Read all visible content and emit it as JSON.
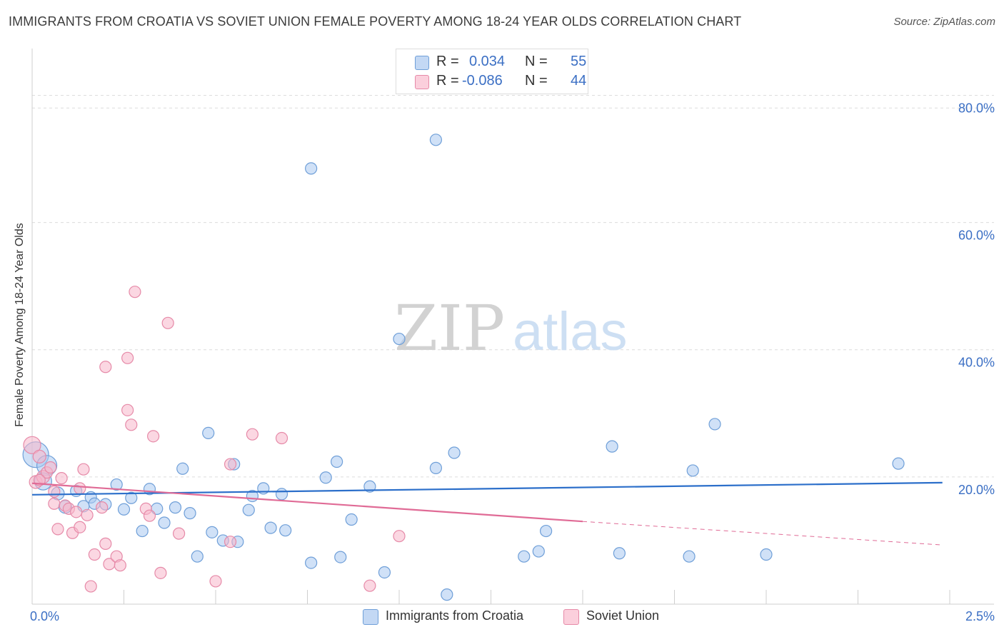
{
  "title": "IMMIGRANTS FROM CROATIA VS SOVIET UNION FEMALE POVERTY AMONG 18-24 YEAR OLDS CORRELATION CHART",
  "source": "Source: ZipAtlas.com",
  "watermark": {
    "zip": "ZIP",
    "atlas": "atlas"
  },
  "colors": {
    "blue_fill": "#aac8f0",
    "blue_stroke": "#6f9fd8",
    "blue_line": "#2c6fca",
    "pink_fill": "#f7b7cb",
    "pink_stroke": "#e68aa8",
    "pink_line": "#e06b96",
    "tick_text": "#3b6fc4",
    "grid": "#dcdcdc"
  },
  "legend": {
    "r_label": "R =",
    "n_label": "N =",
    "items": [
      {
        "r": "0.034",
        "n": "55"
      },
      {
        "r": "-0.086",
        "n": "44"
      }
    ]
  },
  "chart_data": {
    "type": "scatter",
    "title": "IMMIGRANTS FROM CROATIA VS SOVIET UNION FEMALE POVERTY AMONG 18-24 YEAR OLDS CORRELATION CHART",
    "xlabel": "",
    "ylabel": "Female Poverty Among 18-24 Year Olds",
    "xlim": [
      0,
      2.5
    ],
    "ylim": [
      0,
      86
    ],
    "x_tick_labels": [
      "0.0%",
      "2.5%"
    ],
    "y_ticks": [
      20,
      40,
      60,
      80
    ],
    "y_tick_labels": [
      "20.0%",
      "40.0%",
      "60.0%",
      "80.0%"
    ],
    "grid": "horizontal dashed",
    "legend_position": "top-center and bottom",
    "series": [
      {
        "name": "Immigrants from Croatia",
        "color": "#aac8f0",
        "trend": {
          "x": [
            0.0,
            2.48
          ],
          "y": [
            17.2,
            19.1
          ]
        },
        "points": [
          {
            "x": 0.01,
            "y": 23.5,
            "r": 18
          },
          {
            "x": 0.04,
            "y": 21.8,
            "r": 14
          },
          {
            "x": 0.03,
            "y": 19.3,
            "r": 12
          },
          {
            "x": 0.07,
            "y": 17.4,
            "r": 9
          },
          {
            "x": 0.09,
            "y": 15.3,
            "r": 9
          },
          {
            "x": 0.12,
            "y": 17.8,
            "r": 8
          },
          {
            "x": 0.14,
            "y": 15.4,
            "r": 8
          },
          {
            "x": 0.16,
            "y": 16.8,
            "r": 8
          },
          {
            "x": 0.17,
            "y": 15.8,
            "r": 8
          },
          {
            "x": 0.2,
            "y": 15.7,
            "r": 8
          },
          {
            "x": 0.23,
            "y": 18.8,
            "r": 8
          },
          {
            "x": 0.25,
            "y": 14.9,
            "r": 8
          },
          {
            "x": 0.27,
            "y": 16.7,
            "r": 8
          },
          {
            "x": 0.3,
            "y": 11.5,
            "r": 8
          },
          {
            "x": 0.32,
            "y": 18.1,
            "r": 8
          },
          {
            "x": 0.34,
            "y": 15.0,
            "r": 8
          },
          {
            "x": 0.36,
            "y": 12.8,
            "r": 8
          },
          {
            "x": 0.39,
            "y": 15.2,
            "r": 8
          },
          {
            "x": 0.41,
            "y": 21.3,
            "r": 8
          },
          {
            "x": 0.43,
            "y": 14.3,
            "r": 8
          },
          {
            "x": 0.45,
            "y": 7.5,
            "r": 8
          },
          {
            "x": 0.48,
            "y": 26.9,
            "r": 8
          },
          {
            "x": 0.49,
            "y": 11.3,
            "r": 8
          },
          {
            "x": 0.52,
            "y": 10.0,
            "r": 8
          },
          {
            "x": 0.55,
            "y": 22.0,
            "r": 8
          },
          {
            "x": 0.56,
            "y": 9.8,
            "r": 8
          },
          {
            "x": 0.59,
            "y": 14.8,
            "r": 8
          },
          {
            "x": 0.6,
            "y": 17.0,
            "r": 8
          },
          {
            "x": 0.63,
            "y": 18.2,
            "r": 8
          },
          {
            "x": 0.65,
            "y": 12.0,
            "r": 8
          },
          {
            "x": 0.68,
            "y": 17.3,
            "r": 8
          },
          {
            "x": 0.69,
            "y": 11.6,
            "r": 8
          },
          {
            "x": 0.76,
            "y": 68.5,
            "r": 8
          },
          {
            "x": 0.76,
            "y": 6.5,
            "r": 8
          },
          {
            "x": 0.8,
            "y": 19.9,
            "r": 8
          },
          {
            "x": 0.83,
            "y": 22.4,
            "r": 8
          },
          {
            "x": 0.84,
            "y": 7.4,
            "r": 8
          },
          {
            "x": 0.87,
            "y": 13.3,
            "r": 8
          },
          {
            "x": 0.92,
            "y": 18.5,
            "r": 8
          },
          {
            "x": 0.96,
            "y": 5.0,
            "r": 8
          },
          {
            "x": 1.0,
            "y": 41.7,
            "r": 8
          },
          {
            "x": 1.1,
            "y": 73.0,
            "r": 8
          },
          {
            "x": 1.1,
            "y": 21.4,
            "r": 8
          },
          {
            "x": 1.13,
            "y": 1.5,
            "r": 8
          },
          {
            "x": 1.15,
            "y": 23.8,
            "r": 8
          },
          {
            "x": 1.34,
            "y": 7.5,
            "r": 8
          },
          {
            "x": 1.38,
            "y": 8.3,
            "r": 8
          },
          {
            "x": 1.4,
            "y": 11.5,
            "r": 8
          },
          {
            "x": 1.58,
            "y": 24.8,
            "r": 8
          },
          {
            "x": 1.6,
            "y": 8.0,
            "r": 8
          },
          {
            "x": 1.79,
            "y": 7.5,
            "r": 8
          },
          {
            "x": 1.8,
            "y": 21.0,
            "r": 8
          },
          {
            "x": 1.86,
            "y": 28.3,
            "r": 8
          },
          {
            "x": 2.0,
            "y": 7.8,
            "r": 8
          },
          {
            "x": 2.36,
            "y": 22.1,
            "r": 8
          }
        ]
      },
      {
        "name": "Soviet Union",
        "color": "#f7b7cb",
        "trend": {
          "x": [
            0.0,
            1.5
          ],
          "y": [
            19.0,
            13.0
          ]
        },
        "trend_extension": {
          "x": [
            1.5,
            2.48
          ],
          "y": [
            13.0,
            9.3
          ]
        },
        "points": [
          {
            "x": 0.0,
            "y": 25.0,
            "r": 12
          },
          {
            "x": 0.02,
            "y": 23.2,
            "r": 9
          },
          {
            "x": 0.01,
            "y": 19.2,
            "r": 9
          },
          {
            "x": 0.03,
            "y": 20.0,
            "r": 9
          },
          {
            "x": 0.04,
            "y": 20.7,
            "r": 8
          },
          {
            "x": 0.05,
            "y": 21.5,
            "r": 8
          },
          {
            "x": 0.06,
            "y": 17.7,
            "r": 8
          },
          {
            "x": 0.06,
            "y": 15.8,
            "r": 8
          },
          {
            "x": 0.07,
            "y": 11.8,
            "r": 8
          },
          {
            "x": 0.08,
            "y": 19.8,
            "r": 8
          },
          {
            "x": 0.09,
            "y": 15.5,
            "r": 8
          },
          {
            "x": 0.1,
            "y": 15.0,
            "r": 8
          },
          {
            "x": 0.11,
            "y": 11.2,
            "r": 8
          },
          {
            "x": 0.12,
            "y": 14.5,
            "r": 8
          },
          {
            "x": 0.13,
            "y": 12.1,
            "r": 8
          },
          {
            "x": 0.13,
            "y": 18.2,
            "r": 8
          },
          {
            "x": 0.14,
            "y": 21.2,
            "r": 8
          },
          {
            "x": 0.15,
            "y": 14.0,
            "r": 8
          },
          {
            "x": 0.16,
            "y": 2.8,
            "r": 8
          },
          {
            "x": 0.17,
            "y": 7.8,
            "r": 8
          },
          {
            "x": 0.19,
            "y": 15.2,
            "r": 8
          },
          {
            "x": 0.2,
            "y": 9.5,
            "r": 8
          },
          {
            "x": 0.2,
            "y": 37.3,
            "r": 8
          },
          {
            "x": 0.21,
            "y": 6.3,
            "r": 8
          },
          {
            "x": 0.23,
            "y": 7.5,
            "r": 8
          },
          {
            "x": 0.24,
            "y": 6.1,
            "r": 8
          },
          {
            "x": 0.26,
            "y": 38.7,
            "r": 8
          },
          {
            "x": 0.26,
            "y": 30.5,
            "r": 8
          },
          {
            "x": 0.27,
            "y": 28.2,
            "r": 8
          },
          {
            "x": 0.28,
            "y": 49.1,
            "r": 8
          },
          {
            "x": 0.31,
            "y": 15.0,
            "r": 8
          },
          {
            "x": 0.32,
            "y": 13.9,
            "r": 8
          },
          {
            "x": 0.33,
            "y": 26.4,
            "r": 8
          },
          {
            "x": 0.35,
            "y": 4.9,
            "r": 8
          },
          {
            "x": 0.37,
            "y": 44.2,
            "r": 8
          },
          {
            "x": 0.4,
            "y": 11.1,
            "r": 8
          },
          {
            "x": 0.5,
            "y": 3.6,
            "r": 8
          },
          {
            "x": 0.54,
            "y": 22.0,
            "r": 8
          },
          {
            "x": 0.54,
            "y": 9.8,
            "r": 8
          },
          {
            "x": 0.6,
            "y": 26.7,
            "r": 8
          },
          {
            "x": 0.68,
            "y": 26.1,
            "r": 8
          },
          {
            "x": 0.92,
            "y": 2.9,
            "r": 8
          },
          {
            "x": 1.0,
            "y": 10.7,
            "r": 8
          },
          {
            "x": 0.02,
            "y": 19.5,
            "r": 8
          }
        ]
      }
    ]
  }
}
